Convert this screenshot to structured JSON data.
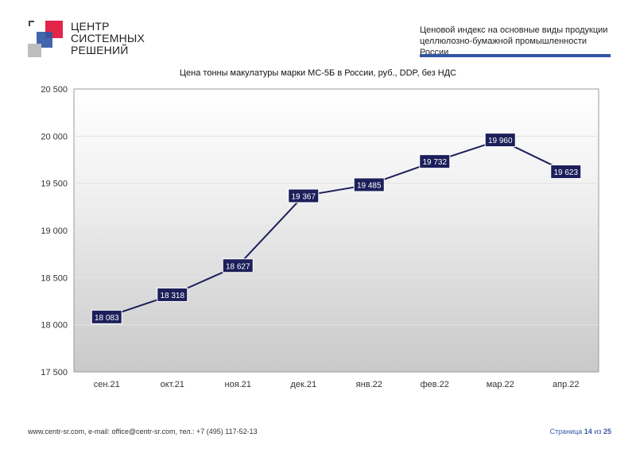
{
  "logo": {
    "line1": "ЦЕНТР",
    "line2": "СИСТЕМНЫХ",
    "line3": "РЕШЕНИЙ"
  },
  "header": {
    "line1": "Ценовой индекс на основные виды продукции",
    "line2": "целлюлозно-бумажной промышленности России"
  },
  "chart_data": {
    "type": "line",
    "title": "Цена тонны макулатуры марки МС-5Б в России, руб., DDP, без НДС",
    "categories": [
      "сен.21",
      "окт.21",
      "ноя.21",
      "дек.21",
      "янв.22",
      "фев.22",
      "мар.22",
      "апр.22"
    ],
    "values": [
      18083,
      18318,
      18627,
      19367,
      19485,
      19732,
      19960,
      19623
    ],
    "data_labels": [
      "18 083",
      "18 318",
      "18 627",
      "19 367",
      "19 485",
      "19 732",
      "19 960",
      "19 623"
    ],
    "yticks": [
      "17 500",
      "18 000",
      "18 500",
      "19 000",
      "19 500",
      "20 000",
      "20 500"
    ],
    "ylim": [
      17500,
      20500
    ],
    "ytick_step": 500,
    "grid": true,
    "line_color": "#1c1f5a",
    "label_bg": "#1c1f5a"
  },
  "footer": {
    "contacts": "www.centr-sr.com, e-mail: office@centr-sr.com, тел.: +7 (495) 117-52-13",
    "page_word": "Страница",
    "page_num": "14",
    "of_word": "из",
    "page_total": "25"
  }
}
